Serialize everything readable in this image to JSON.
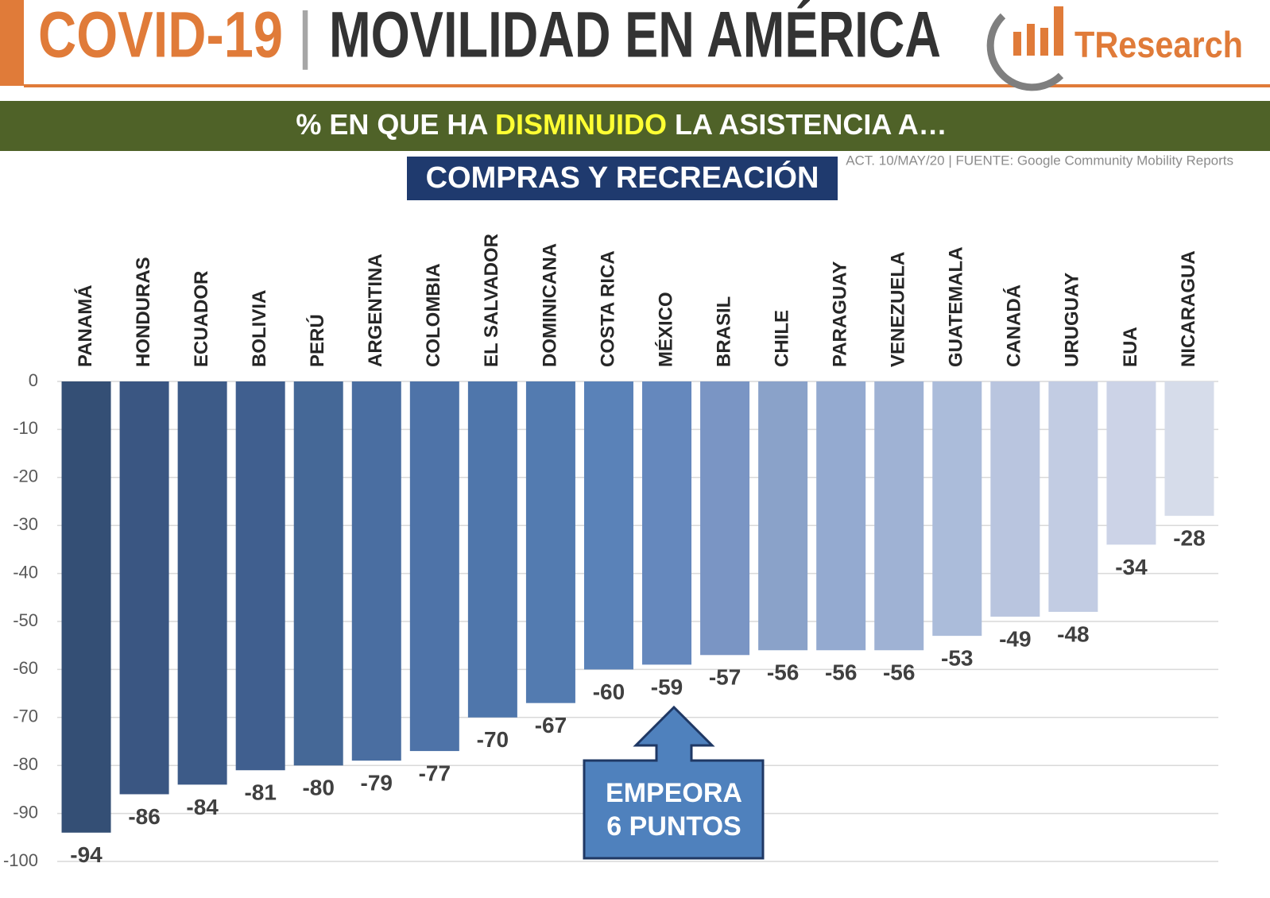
{
  "header": {
    "title_left": "COVID-19",
    "separator": "|",
    "title_right": "MOVILIDAD EN AMÉRICA",
    "logo": "TResearch"
  },
  "subtitle": {
    "pre": "% EN QUE HA ",
    "highlight": "DISMINUIDO",
    "post": " LA ASISTENCIA A…"
  },
  "source": "ACT. 10/MAY/20 | FUENTE: Google Community Mobility Reports",
  "chart_data": {
    "type": "bar",
    "title": "COMPRAS Y RECREACIÓN",
    "categories": [
      "PANAMÁ",
      "HONDURAS",
      "ECUADOR",
      "BOLIVIA",
      "PERÚ",
      "ARGENTINA",
      "COLOMBIA",
      "EL SALVADOR",
      "DOMINICANA",
      "COSTA RICA",
      "MÉXICO",
      "BRASIL",
      "CHILE",
      "PARAGUAY",
      "VENEZUELA",
      "GUATEMALA",
      "CANADÁ",
      "URUGUAY",
      "EUA",
      "NICARAGUA"
    ],
    "values": [
      -94,
      -86,
      -84,
      -81,
      -80,
      -79,
      -77,
      -70,
      -67,
      -60,
      -59,
      -57,
      -56,
      -56,
      -56,
      -53,
      -49,
      -48,
      -34,
      -28
    ],
    "colors": [
      "#344f75",
      "#3a5682",
      "#3d5b88",
      "#405f8f",
      "#456897",
      "#4a6ea1",
      "#4e73a8",
      "#4f76ab",
      "#537bb0",
      "#5a82b8",
      "#6588bd",
      "#7a95c4",
      "#8aa2c9",
      "#94aad0",
      "#9fb2d4",
      "#abbcda",
      "#b9c5df",
      "#c2cce3",
      "#ccd3e7",
      "#d6dcea"
    ],
    "ylim": [
      -100,
      0
    ],
    "yticks": [
      0,
      -10,
      -20,
      -30,
      -40,
      -50,
      -60,
      -70,
      -80,
      -90,
      -100
    ],
    "grid": true,
    "annotation": [
      "EMPEORA",
      "6 PUNTOS"
    ]
  }
}
